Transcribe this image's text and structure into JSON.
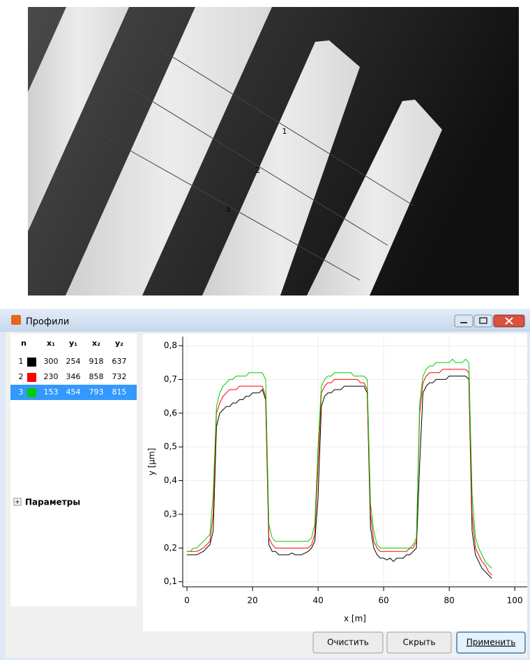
{
  "image_annotations": [
    "1",
    "2",
    "3"
  ],
  "window": {
    "title": "Профили",
    "buttons": [
      "Очистить",
      "Скрыть",
      "Применить"
    ]
  },
  "table": {
    "headers": [
      "n",
      "x₁",
      "y₁",
      "x₂",
      "y₂"
    ],
    "rows": [
      [
        300,
        254,
        918,
        637
      ],
      [
        230,
        346,
        858,
        732
      ],
      [
        153,
        454,
        793,
        815
      ]
    ],
    "selected_row": 2
  },
  "panel": {
    "section": "Параметры"
  },
  "chart_data": {
    "type": "line",
    "x_label": "x [m]",
    "y_label": "y [µm]",
    "x": [
      0,
      1,
      2,
      3,
      4,
      5,
      6,
      7,
      8,
      9,
      10,
      11,
      12,
      13,
      14,
      15,
      16,
      17,
      18,
      19,
      20,
      21,
      22,
      23,
      24,
      25,
      26,
      27,
      28,
      29,
      30,
      31,
      32,
      33,
      34,
      35,
      36,
      37,
      38,
      39,
      40,
      41,
      42,
      43,
      44,
      45,
      46,
      47,
      48,
      49,
      50,
      51,
      52,
      53,
      54,
      55,
      56,
      57,
      58,
      59,
      60,
      61,
      62,
      63,
      64,
      65,
      66,
      67,
      68,
      69,
      70,
      71,
      72,
      73,
      74,
      75,
      76,
      77,
      78,
      79,
      80,
      81,
      82,
      83,
      84,
      85,
      86,
      87,
      88,
      89,
      90,
      91,
      92,
      93
    ],
    "series": [
      {
        "name": "1",
        "color": "#000000",
        "values": [
          0.18,
          0.18,
          0.18,
          0.18,
          0.185,
          0.19,
          0.2,
          0.21,
          0.25,
          0.56,
          0.6,
          0.61,
          0.62,
          0.62,
          0.63,
          0.63,
          0.64,
          0.64,
          0.65,
          0.65,
          0.66,
          0.66,
          0.66,
          0.67,
          0.64,
          0.21,
          0.19,
          0.19,
          0.18,
          0.18,
          0.18,
          0.18,
          0.185,
          0.18,
          0.18,
          0.18,
          0.185,
          0.19,
          0.2,
          0.22,
          0.35,
          0.62,
          0.65,
          0.66,
          0.66,
          0.67,
          0.67,
          0.67,
          0.68,
          0.68,
          0.68,
          0.68,
          0.68,
          0.68,
          0.68,
          0.66,
          0.26,
          0.2,
          0.18,
          0.17,
          0.17,
          0.165,
          0.17,
          0.16,
          0.17,
          0.17,
          0.17,
          0.18,
          0.18,
          0.19,
          0.2,
          0.45,
          0.66,
          0.68,
          0.69,
          0.69,
          0.7,
          0.7,
          0.7,
          0.7,
          0.71,
          0.71,
          0.71,
          0.71,
          0.71,
          0.71,
          0.7,
          0.25,
          0.18,
          0.16,
          0.14,
          0.13,
          0.12,
          0.11
        ]
      },
      {
        "name": "2",
        "color": "#ff0000",
        "values": [
          0.19,
          0.19,
          0.19,
          0.19,
          0.195,
          0.2,
          0.21,
          0.22,
          0.3,
          0.6,
          0.63,
          0.65,
          0.66,
          0.67,
          0.67,
          0.67,
          0.68,
          0.68,
          0.68,
          0.68,
          0.68,
          0.68,
          0.68,
          0.68,
          0.65,
          0.23,
          0.21,
          0.2,
          0.2,
          0.2,
          0.2,
          0.2,
          0.2,
          0.2,
          0.2,
          0.2,
          0.2,
          0.2,
          0.21,
          0.24,
          0.45,
          0.66,
          0.68,
          0.69,
          0.69,
          0.7,
          0.7,
          0.7,
          0.7,
          0.7,
          0.7,
          0.7,
          0.7,
          0.69,
          0.69,
          0.67,
          0.3,
          0.22,
          0.2,
          0.19,
          0.19,
          0.19,
          0.19,
          0.19,
          0.19,
          0.19,
          0.19,
          0.19,
          0.2,
          0.2,
          0.22,
          0.6,
          0.69,
          0.71,
          0.72,
          0.72,
          0.72,
          0.72,
          0.73,
          0.73,
          0.73,
          0.73,
          0.73,
          0.73,
          0.73,
          0.73,
          0.72,
          0.3,
          0.2,
          0.18,
          0.16,
          0.15,
          0.13,
          0.12
        ]
      },
      {
        "name": "3",
        "color": "#00cc00",
        "values": [
          0.19,
          0.19,
          0.2,
          0.2,
          0.21,
          0.22,
          0.23,
          0.24,
          0.36,
          0.62,
          0.66,
          0.68,
          0.69,
          0.7,
          0.7,
          0.71,
          0.71,
          0.71,
          0.71,
          0.72,
          0.72,
          0.72,
          0.72,
          0.72,
          0.7,
          0.27,
          0.23,
          0.22,
          0.22,
          0.22,
          0.22,
          0.22,
          0.22,
          0.22,
          0.22,
          0.22,
          0.22,
          0.22,
          0.23,
          0.27,
          0.5,
          0.68,
          0.7,
          0.71,
          0.71,
          0.72,
          0.72,
          0.72,
          0.72,
          0.72,
          0.72,
          0.71,
          0.71,
          0.71,
          0.71,
          0.7,
          0.33,
          0.25,
          0.21,
          0.2,
          0.2,
          0.2,
          0.2,
          0.2,
          0.2,
          0.2,
          0.2,
          0.2,
          0.2,
          0.21,
          0.23,
          0.63,
          0.71,
          0.73,
          0.74,
          0.74,
          0.75,
          0.75,
          0.75,
          0.75,
          0.75,
          0.76,
          0.75,
          0.75,
          0.75,
          0.76,
          0.75,
          0.36,
          0.23,
          0.2,
          0.18,
          0.16,
          0.15,
          0.14
        ]
      }
    ],
    "xlim": [
      -1.3,
      103.8
    ],
    "xticks": [
      0,
      20,
      40,
      60,
      80,
      100
    ],
    "ylim": [
      0.085,
      0.827
    ],
    "yticks": [
      {
        "value": 0.1,
        "label": "0,1"
      },
      {
        "value": 0.2,
        "label": "0,2"
      },
      {
        "value": 0.3,
        "label": "0,3"
      },
      {
        "value": 0.4,
        "label": "0,4"
      },
      {
        "value": 0.5,
        "label": "0,5"
      },
      {
        "value": 0.6,
        "label": "0,6"
      },
      {
        "value": 0.7,
        "label": "0,7"
      },
      {
        "value": 0.8,
        "label": "0,8"
      }
    ],
    "grid": true
  }
}
